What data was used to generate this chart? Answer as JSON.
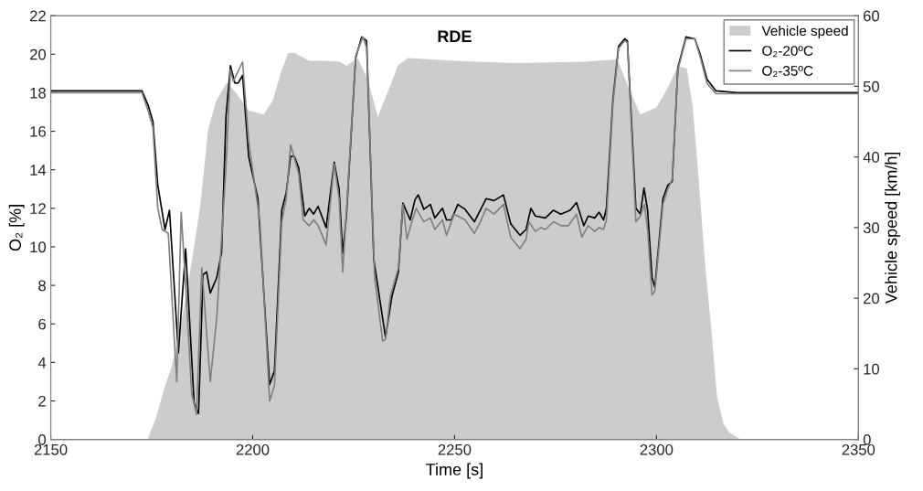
{
  "chart_data": {
    "type": "line",
    "title": "RDE",
    "xlabel": "Time [s]",
    "ylabel": "O₂ [%]",
    "y2label": "Vehicle speed [km/h]",
    "xlim": [
      2150,
      2350
    ],
    "xticks": [
      2150,
      2200,
      2250,
      2300,
      2350
    ],
    "ylim": [
      0,
      22
    ],
    "yticks": [
      0,
      2,
      4,
      6,
      8,
      10,
      12,
      14,
      16,
      18,
      20,
      22
    ],
    "y2lim": [
      0,
      60
    ],
    "y2ticks": [
      0,
      10,
      20,
      30,
      40,
      50,
      60
    ],
    "grid": false,
    "legend": "top right",
    "series": [
      {
        "name": "Vehicle speed",
        "type": "area",
        "axis": "y2",
        "color": "#cccccc",
        "x": [
          2150,
          2174,
          2176,
          2178,
          2180,
          2182.5,
          2185,
          2187,
          2189,
          2191,
          2193.6,
          2196,
          2199,
          2202.7,
          2205,
          2207,
          2208.8,
          2210.3,
          2214,
          2217.8,
          2221.6,
          2223.2,
          2226,
          2228.5,
          2231,
          2234,
          2236,
          2238.4,
          2250,
          2265.5,
          2282,
          2290.3,
          2293,
          2296,
          2300,
          2303,
          2305.3,
          2307.5,
          2309,
          2310.7,
          2312,
          2313.6,
          2315,
          2316.6,
          2318,
          2320.8,
          2350
        ],
        "values": [
          0,
          0,
          3,
          7,
          10.4,
          17,
          25.5,
          33,
          44,
          48,
          50.5,
          49,
          46.6,
          46,
          48,
          52,
          54.7,
          54.7,
          53.6,
          53.6,
          53.5,
          52.9,
          54,
          51,
          45.7,
          50,
          53,
          54,
          53.6,
          53.3,
          53.5,
          53.8,
          50,
          46,
          47,
          50,
          52.9,
          52.5,
          47,
          35,
          25,
          15.5,
          6,
          2.2,
          1,
          0,
          0
        ]
      },
      {
        "name": "O₂-20ºC",
        "color": "#000000",
        "x": [
          2150,
          2155,
          2160,
          2165,
          2172.6,
          2174.2,
          2175.3,
          2176.5,
          2178.3,
          2179.4,
          2181.6,
          2183.4,
          2185.5,
          2186.6,
          2187.7,
          2188.6,
          2189.5,
          2191.1,
          2192.3,
          2193.4,
          2194.5,
          2195.6,
          2196.4,
          2197.5,
          2199,
          2201.3,
          2204.2,
          2205.4,
          2207.2,
          2208.3,
          2209.4,
          2210.3,
          2211.4,
          2212.9,
          2214,
          2215.1,
          2216.2,
          2218.2,
          2220.2,
          2221.4,
          2222.3,
          2223.2,
          2225.5,
          2227,
          2228.2,
          2230,
          2231.6,
          2232.9,
          2234.5,
          2236.1,
          2237.2,
          2239,
          2240.2,
          2241,
          2242.4,
          2244,
          2245.1,
          2247,
          2248,
          2249.2,
          2250.8,
          2252.6,
          2254.9,
          2257.8,
          2259.8,
          2262.1,
          2263.9,
          2266.2,
          2267.7,
          2268.9,
          2270,
          2272.5,
          2274.5,
          2276.3,
          2278.6,
          2280.2,
          2282,
          2283.1,
          2284.7,
          2285.8,
          2286.9,
          2287.6,
          2289.2,
          2290.6,
          2292.1,
          2292.8,
          2294.9,
          2296,
          2296.9,
          2297.8,
          2298.9,
          2299.6,
          2301.6,
          2302.8,
          2303.9,
          2305.3,
          2307.3,
          2309.5,
          2310.9,
          2312.5,
          2314.7,
          2320,
          2330,
          2340,
          2350
        ],
        "values": [
          18.1,
          18.1,
          18.1,
          18.1,
          18.1,
          17.3,
          16.5,
          13.2,
          10.9,
          11.9,
          4.5,
          9.9,
          1.9,
          1.35,
          8.55,
          8.7,
          7.6,
          8.4,
          9.7,
          16.8,
          19.4,
          18.5,
          18.5,
          18.9,
          14.7,
          12.5,
          2.85,
          3.56,
          11.9,
          12.8,
          14.7,
          14.7,
          14.1,
          11.6,
          12.0,
          11.7,
          12.1,
          11.0,
          14.4,
          13.0,
          9.66,
          11.56,
          19.8,
          20.9,
          20.7,
          9.35,
          7.1,
          5.3,
          7.45,
          8.7,
          12.27,
          11.4,
          12.45,
          12.7,
          11.95,
          12.2,
          11.5,
          12.0,
          11.4,
          11.4,
          12.2,
          11.95,
          11.3,
          12.5,
          12.4,
          12.7,
          11.2,
          10.6,
          10.9,
          12.0,
          11.6,
          11.5,
          11.9,
          11.7,
          11.9,
          12.3,
          11.1,
          11.6,
          11.5,
          11.8,
          11.4,
          12.0,
          17.6,
          20.4,
          20.8,
          20.7,
          12.0,
          11.7,
          13.06,
          11.9,
          8.4,
          7.9,
          12.5,
          13.2,
          13.4,
          19.3,
          20.9,
          20.8,
          19.95,
          18.7,
          18.1,
          18.0,
          18.0,
          18.0,
          18.0
        ]
      },
      {
        "name": "O₂-35ºC",
        "color": "#808080",
        "x": [
          2150,
          2160,
          2172.6,
          2174.2,
          2175.3,
          2176.5,
          2177.6,
          2179.1,
          2181.2,
          2182.3,
          2183.4,
          2184.9,
          2186.1,
          2187.4,
          2189.5,
          2191.1,
          2193.4,
          2194.5,
          2195.2,
          2197.5,
          2199,
          2201.8,
          2204.2,
          2205.4,
          2207.2,
          2208.3,
          2209.4,
          2211.4,
          2212.5,
          2214,
          2215.1,
          2216.2,
          2218.2,
          2220.2,
          2221.4,
          2222.3,
          2223.5,
          2225.5,
          2227.3,
          2228.3,
          2230.2,
          2232.2,
          2232.9,
          2234.1,
          2236.1,
          2237.2,
          2238.2,
          2239.4,
          2240.5,
          2242.4,
          2244,
          2245.1,
          2247,
          2248,
          2249.9,
          2252.6,
          2254.9,
          2256.4,
          2257.8,
          2259.8,
          2262.1,
          2263.9,
          2266.2,
          2267.7,
          2268.4,
          2270,
          2271.4,
          2272.5,
          2274.5,
          2276.3,
          2278.2,
          2280.2,
          2281.5,
          2283.1,
          2284.7,
          2285.8,
          2286.9,
          2287.6,
          2289.2,
          2290.6,
          2292.1,
          2292.8,
          2294.9,
          2296,
          2297,
          2297.8,
          2298.9,
          2299.6,
          2301.6,
          2302.8,
          2303.9,
          2305.3,
          2307.3,
          2309.5,
          2310.9,
          2312.5,
          2314.7,
          2330,
          2350
        ],
        "values": [
          18.0,
          18.0,
          18.0,
          17.0,
          16.2,
          12.0,
          10.9,
          10.7,
          3.0,
          11.8,
          8.0,
          2.4,
          1.3,
          8.9,
          3.0,
          6.3,
          14.2,
          19.2,
          18.6,
          19.6,
          15.5,
          11.3,
          2.0,
          2.8,
          11.3,
          12.5,
          15.3,
          13.8,
          11.4,
          11.1,
          11.4,
          11.1,
          10.1,
          14.3,
          12.5,
          8.7,
          12.8,
          19.9,
          20.9,
          20.3,
          8.4,
          5.1,
          5.2,
          7.45,
          8.9,
          12.2,
          10.4,
          11.3,
          12.0,
          11.3,
          11.5,
          10.9,
          11.4,
          10.6,
          11.7,
          11.4,
          10.7,
          11.3,
          12.0,
          11.7,
          12.2,
          10.5,
          9.9,
          10.4,
          11.3,
          10.8,
          11.0,
          10.9,
          11.3,
          11.1,
          11.1,
          11.7,
          10.5,
          11.1,
          10.8,
          11.0,
          10.9,
          11.4,
          17.4,
          20.3,
          20.7,
          20.6,
          11.3,
          11.6,
          12.2,
          10.9,
          7.5,
          7.7,
          12.2,
          13.0,
          13.5,
          19.2,
          20.8,
          20.8,
          19.8,
          18.5,
          17.95,
          17.95,
          17.95
        ]
      }
    ]
  }
}
